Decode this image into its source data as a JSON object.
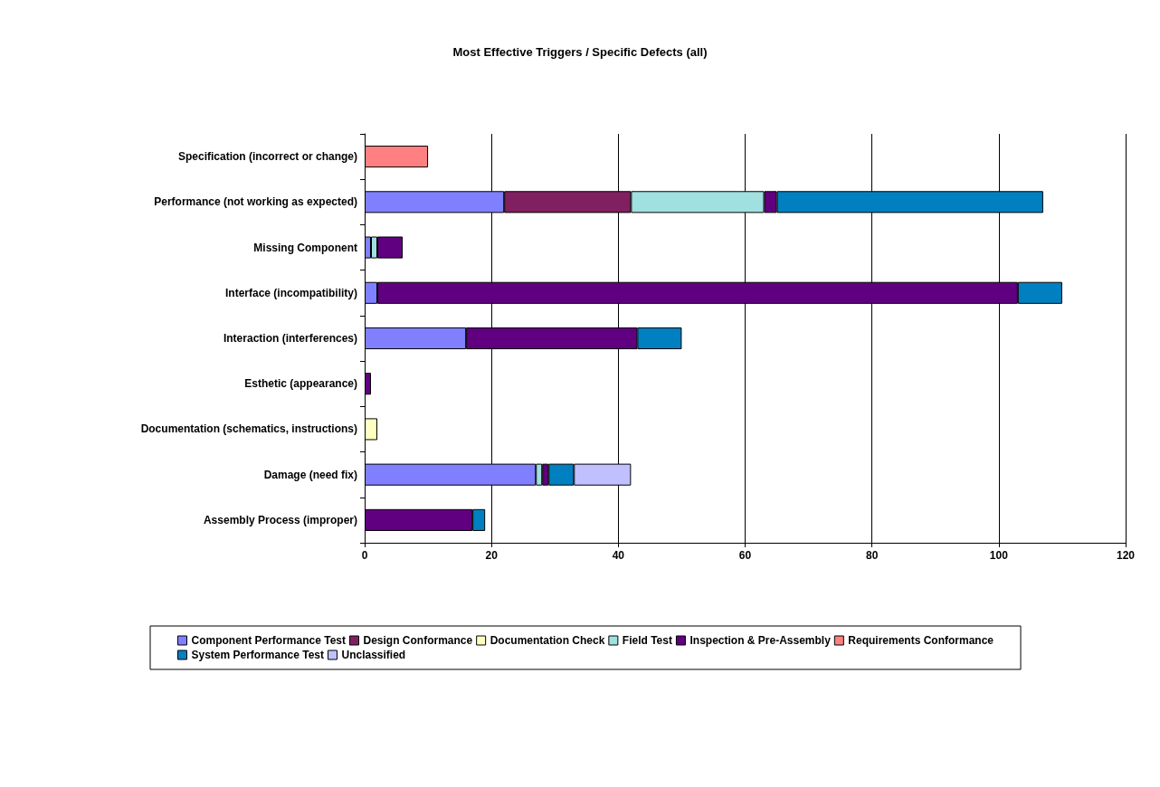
{
  "chart_data": {
    "type": "bar",
    "title": "Most Effective Triggers / Specific Defects (all)",
    "orientation": "horizontal",
    "stacked": true,
    "categories": [
      "Specification (incorrect or change)",
      "Performance (not working as expected)",
      "Missing Component",
      "Interface (incompatibility)",
      "Interaction (interferences)",
      "Esthetic (appearance)",
      "Documentation (schematics, instructions)",
      "Damage (need fix)",
      "Assembly Process (improper)"
    ],
    "series": [
      {
        "name": "Component Performance Test",
        "color": "#8080ff",
        "values": [
          null,
          22,
          1,
          2,
          16,
          null,
          null,
          27,
          null
        ]
      },
      {
        "name": "Design Conformance",
        "color": "#802060",
        "values": [
          null,
          20,
          null,
          null,
          null,
          null,
          null,
          null,
          null
        ]
      },
      {
        "name": "Documentation Check",
        "color": "#ffffc0",
        "values": [
          null,
          null,
          null,
          null,
          null,
          null,
          2,
          null,
          null
        ]
      },
      {
        "name": "Field Test",
        "color": "#a0e0e0",
        "values": [
          null,
          21,
          1,
          null,
          null,
          null,
          null,
          1,
          null
        ]
      },
      {
        "name": "Inspection & Pre-Assembly",
        "color": "#600080",
        "values": [
          null,
          2,
          4,
          101,
          27,
          1,
          null,
          1,
          17
        ]
      },
      {
        "name": "Requirements Conformance",
        "color": "#ff8080",
        "values": [
          10,
          null,
          null,
          null,
          null,
          null,
          null,
          null,
          null
        ]
      },
      {
        "name": "System Performance Test",
        "color": "#0080c0",
        "values": [
          null,
          42,
          null,
          7,
          7,
          null,
          null,
          4,
          2
        ]
      },
      {
        "name": "Unclassified",
        "color": "#c0c0ff",
        "values": [
          null,
          null,
          null,
          null,
          null,
          null,
          null,
          9,
          null
        ]
      }
    ],
    "xlim": [
      0,
      120
    ],
    "xticks": [
      0,
      20,
      40,
      60,
      80,
      100,
      120
    ],
    "grid": "x",
    "legend": "bottom"
  }
}
